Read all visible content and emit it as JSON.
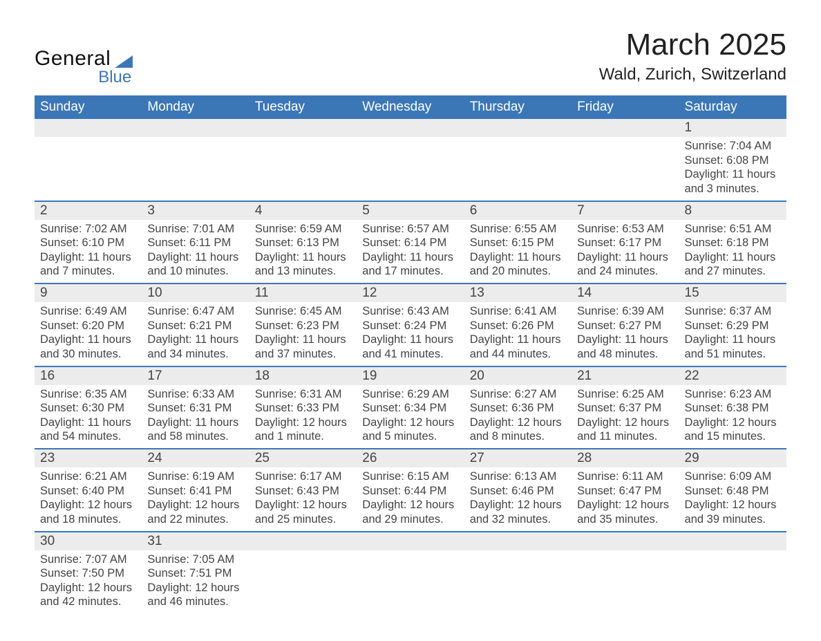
{
  "logo": {
    "general": "General",
    "blue": "Blue"
  },
  "title": "March 2025",
  "location": "Wald, Zurich, Switzerland",
  "colors": {
    "header_bg": "#3b77b7",
    "header_text": "#ffffff",
    "daynum_bg": "#ececec",
    "body_text": "#444444",
    "page_bg": "#ffffff",
    "row_divider": "#3b77b7"
  },
  "day_names": [
    "Sunday",
    "Monday",
    "Tuesday",
    "Wednesday",
    "Thursday",
    "Friday",
    "Saturday"
  ],
  "weeks": [
    [
      null,
      null,
      null,
      null,
      null,
      null,
      {
        "n": "1",
        "sr": "Sunrise: 7:04 AM",
        "ss": "Sunset: 6:08 PM",
        "dl": "Daylight: 11 hours and 3 minutes."
      }
    ],
    [
      {
        "n": "2",
        "sr": "Sunrise: 7:02 AM",
        "ss": "Sunset: 6:10 PM",
        "dl": "Daylight: 11 hours and 7 minutes."
      },
      {
        "n": "3",
        "sr": "Sunrise: 7:01 AM",
        "ss": "Sunset: 6:11 PM",
        "dl": "Daylight: 11 hours and 10 minutes."
      },
      {
        "n": "4",
        "sr": "Sunrise: 6:59 AM",
        "ss": "Sunset: 6:13 PM",
        "dl": "Daylight: 11 hours and 13 minutes."
      },
      {
        "n": "5",
        "sr": "Sunrise: 6:57 AM",
        "ss": "Sunset: 6:14 PM",
        "dl": "Daylight: 11 hours and 17 minutes."
      },
      {
        "n": "6",
        "sr": "Sunrise: 6:55 AM",
        "ss": "Sunset: 6:15 PM",
        "dl": "Daylight: 11 hours and 20 minutes."
      },
      {
        "n": "7",
        "sr": "Sunrise: 6:53 AM",
        "ss": "Sunset: 6:17 PM",
        "dl": "Daylight: 11 hours and 24 minutes."
      },
      {
        "n": "8",
        "sr": "Sunrise: 6:51 AM",
        "ss": "Sunset: 6:18 PM",
        "dl": "Daylight: 11 hours and 27 minutes."
      }
    ],
    [
      {
        "n": "9",
        "sr": "Sunrise: 6:49 AM",
        "ss": "Sunset: 6:20 PM",
        "dl": "Daylight: 11 hours and 30 minutes."
      },
      {
        "n": "10",
        "sr": "Sunrise: 6:47 AM",
        "ss": "Sunset: 6:21 PM",
        "dl": "Daylight: 11 hours and 34 minutes."
      },
      {
        "n": "11",
        "sr": "Sunrise: 6:45 AM",
        "ss": "Sunset: 6:23 PM",
        "dl": "Daylight: 11 hours and 37 minutes."
      },
      {
        "n": "12",
        "sr": "Sunrise: 6:43 AM",
        "ss": "Sunset: 6:24 PM",
        "dl": "Daylight: 11 hours and 41 minutes."
      },
      {
        "n": "13",
        "sr": "Sunrise: 6:41 AM",
        "ss": "Sunset: 6:26 PM",
        "dl": "Daylight: 11 hours and 44 minutes."
      },
      {
        "n": "14",
        "sr": "Sunrise: 6:39 AM",
        "ss": "Sunset: 6:27 PM",
        "dl": "Daylight: 11 hours and 48 minutes."
      },
      {
        "n": "15",
        "sr": "Sunrise: 6:37 AM",
        "ss": "Sunset: 6:29 PM",
        "dl": "Daylight: 11 hours and 51 minutes."
      }
    ],
    [
      {
        "n": "16",
        "sr": "Sunrise: 6:35 AM",
        "ss": "Sunset: 6:30 PM",
        "dl": "Daylight: 11 hours and 54 minutes."
      },
      {
        "n": "17",
        "sr": "Sunrise: 6:33 AM",
        "ss": "Sunset: 6:31 PM",
        "dl": "Daylight: 11 hours and 58 minutes."
      },
      {
        "n": "18",
        "sr": "Sunrise: 6:31 AM",
        "ss": "Sunset: 6:33 PM",
        "dl": "Daylight: 12 hours and 1 minute."
      },
      {
        "n": "19",
        "sr": "Sunrise: 6:29 AM",
        "ss": "Sunset: 6:34 PM",
        "dl": "Daylight: 12 hours and 5 minutes."
      },
      {
        "n": "20",
        "sr": "Sunrise: 6:27 AM",
        "ss": "Sunset: 6:36 PM",
        "dl": "Daylight: 12 hours and 8 minutes."
      },
      {
        "n": "21",
        "sr": "Sunrise: 6:25 AM",
        "ss": "Sunset: 6:37 PM",
        "dl": "Daylight: 12 hours and 11 minutes."
      },
      {
        "n": "22",
        "sr": "Sunrise: 6:23 AM",
        "ss": "Sunset: 6:38 PM",
        "dl": "Daylight: 12 hours and 15 minutes."
      }
    ],
    [
      {
        "n": "23",
        "sr": "Sunrise: 6:21 AM",
        "ss": "Sunset: 6:40 PM",
        "dl": "Daylight: 12 hours and 18 minutes."
      },
      {
        "n": "24",
        "sr": "Sunrise: 6:19 AM",
        "ss": "Sunset: 6:41 PM",
        "dl": "Daylight: 12 hours and 22 minutes."
      },
      {
        "n": "25",
        "sr": "Sunrise: 6:17 AM",
        "ss": "Sunset: 6:43 PM",
        "dl": "Daylight: 12 hours and 25 minutes."
      },
      {
        "n": "26",
        "sr": "Sunrise: 6:15 AM",
        "ss": "Sunset: 6:44 PM",
        "dl": "Daylight: 12 hours and 29 minutes."
      },
      {
        "n": "27",
        "sr": "Sunrise: 6:13 AM",
        "ss": "Sunset: 6:46 PM",
        "dl": "Daylight: 12 hours and 32 minutes."
      },
      {
        "n": "28",
        "sr": "Sunrise: 6:11 AM",
        "ss": "Sunset: 6:47 PM",
        "dl": "Daylight: 12 hours and 35 minutes."
      },
      {
        "n": "29",
        "sr": "Sunrise: 6:09 AM",
        "ss": "Sunset: 6:48 PM",
        "dl": "Daylight: 12 hours and 39 minutes."
      }
    ],
    [
      {
        "n": "30",
        "sr": "Sunrise: 7:07 AM",
        "ss": "Sunset: 7:50 PM",
        "dl": "Daylight: 12 hours and 42 minutes."
      },
      {
        "n": "31",
        "sr": "Sunrise: 7:05 AM",
        "ss": "Sunset: 7:51 PM",
        "dl": "Daylight: 12 hours and 46 minutes."
      },
      null,
      null,
      null,
      null,
      null
    ]
  ]
}
